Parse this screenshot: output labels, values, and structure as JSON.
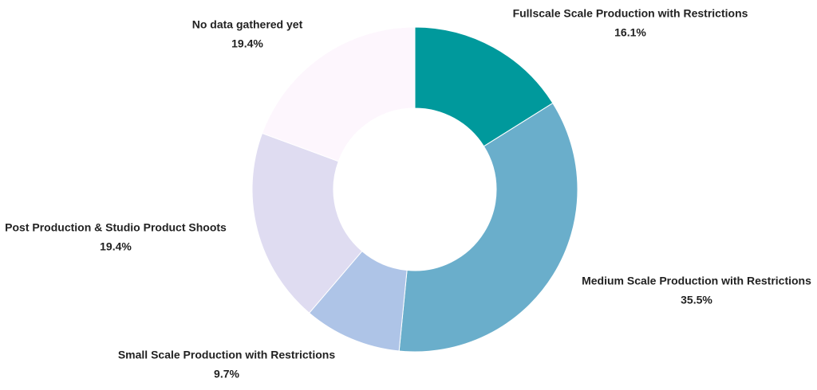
{
  "chart_data": {
    "type": "donut",
    "categories": [
      "Fullscale Scale Production with Restrictions",
      "Medium Scale Production with Restrictions",
      "Small Scale Production with Restrictions",
      "Post Production & Studio Product Shoots",
      "No data gathered yet"
    ],
    "values": [
      16.1,
      35.5,
      9.7,
      19.4,
      19.4
    ],
    "value_labels": [
      "16.1%",
      "35.5%",
      "9.7%",
      "19.4%",
      "19.4%"
    ],
    "colors": [
      "#00999c",
      "#6aaecb",
      "#aec4e7",
      "#dfdcf1",
      "#fdf6fd"
    ]
  }
}
